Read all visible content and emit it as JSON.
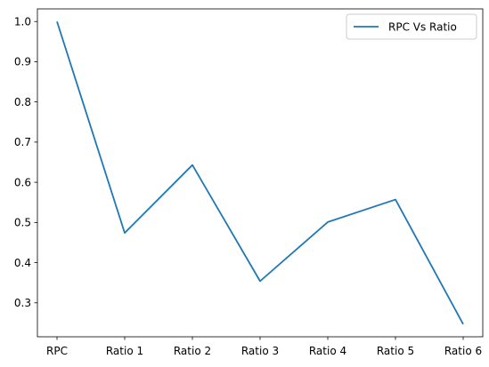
{
  "chart_data": {
    "type": "line",
    "categories": [
      "RPC",
      "Ratio 1",
      "Ratio 2",
      "Ratio 3",
      "Ratio 4",
      "Ratio 5",
      "Ratio 6"
    ],
    "series": [
      {
        "name": "RPC Vs Ratio",
        "values": [
          1.0,
          0.474,
          0.643,
          0.354,
          0.501,
          0.557,
          0.247
        ],
        "color": "#1f77b4"
      }
    ],
    "title": "",
    "xlabel": "",
    "ylabel": "",
    "ylim": [
      0.2155,
      1.0315
    ],
    "yticks": [
      0.3,
      0.4,
      0.5,
      0.6,
      0.7,
      0.8,
      0.9,
      1.0
    ],
    "ytick_labels": [
      "0.3",
      "0.4",
      "0.5",
      "0.6",
      "0.7",
      "0.8",
      "0.9",
      "1.0"
    ],
    "grid": false,
    "legend": "top-right"
  }
}
